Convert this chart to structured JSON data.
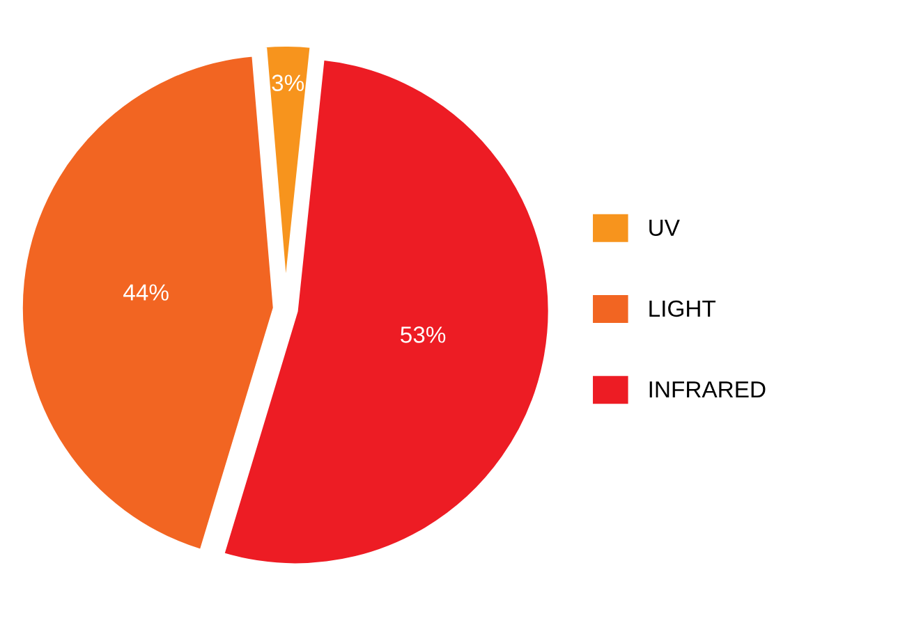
{
  "chart_data": {
    "type": "pie",
    "categories": [
      "UV",
      "LIGHT",
      "INFRARED"
    ],
    "values": [
      3,
      44,
      53
    ],
    "colors": [
      "#f7941d",
      "#f26522",
      "#ed1c24"
    ],
    "value_labels": [
      "3%",
      "44%",
      "53%"
    ],
    "legend": "right"
  }
}
